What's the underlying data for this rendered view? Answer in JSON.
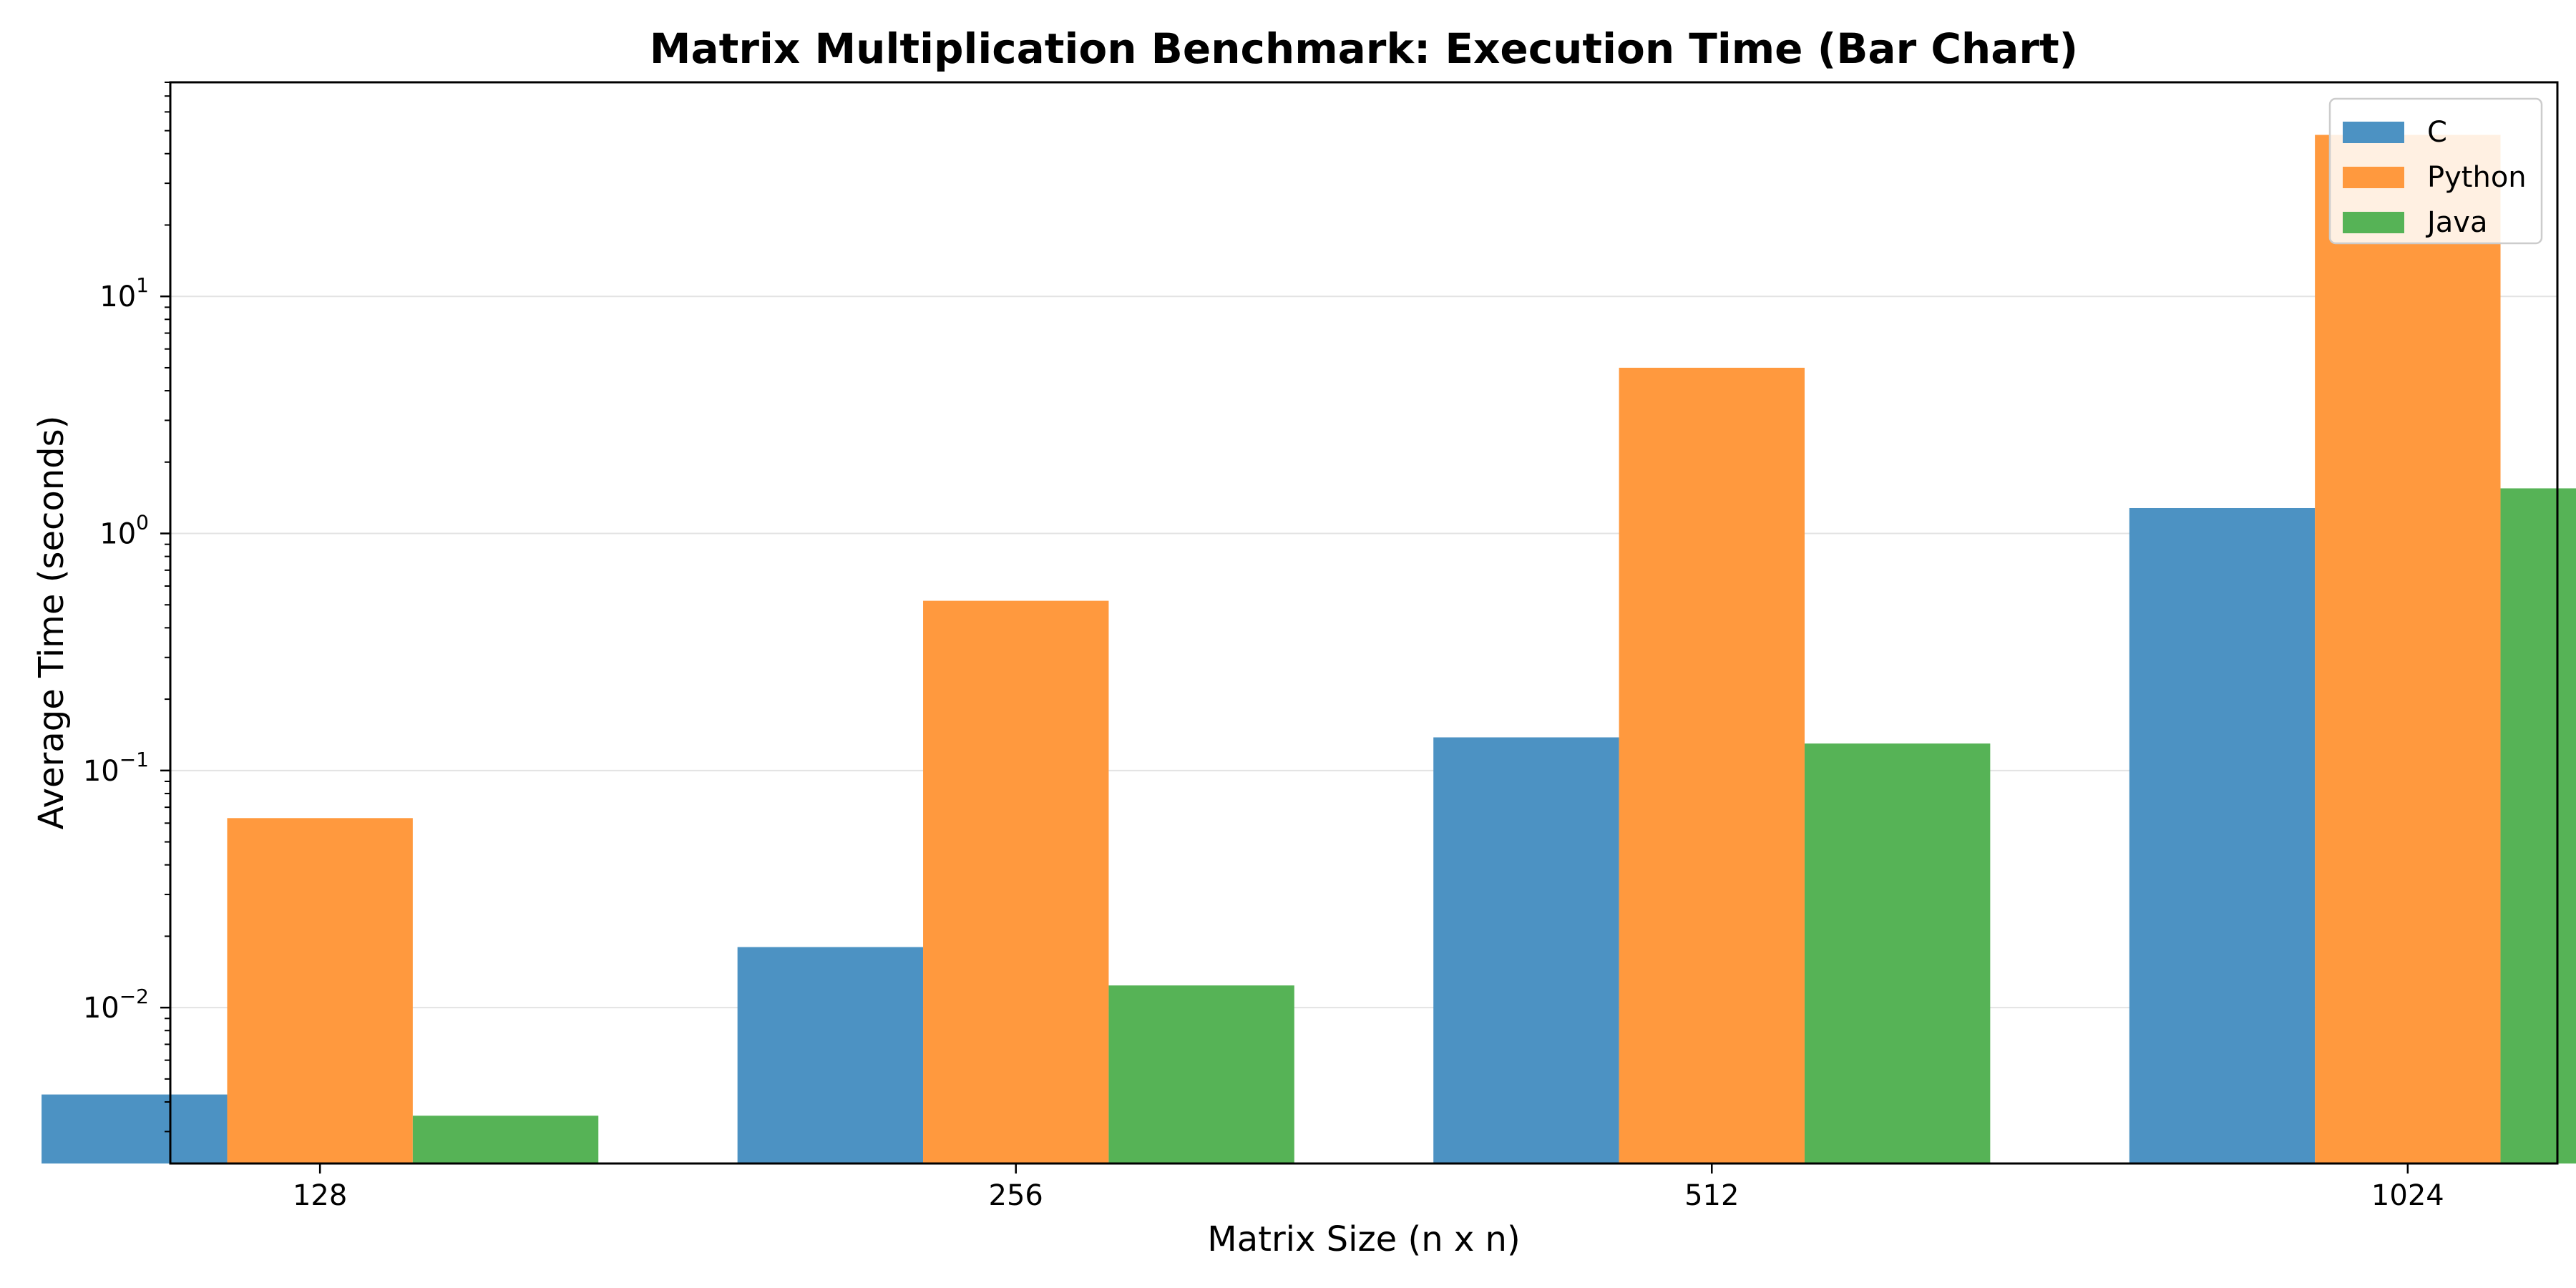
{
  "chart_data": {
    "type": "bar",
    "title": "Matrix Multiplication Benchmark: Execution Time (Bar Chart)",
    "xlabel": "Matrix Size (n x n)",
    "ylabel": "Average Time (seconds)",
    "yscale": "log",
    "ylim": [
      0.0022,
      80
    ],
    "grid": "y-major",
    "legend_placement": "top-right",
    "categories": [
      "128",
      "256",
      "512",
      "1024"
    ],
    "series": [
      {
        "name": "C",
        "color": "#4c92c3",
        "values": [
          0.0043,
          0.018,
          0.138,
          1.28
        ]
      },
      {
        "name": "Python",
        "color": "#ff993e",
        "values": [
          0.063,
          0.52,
          5.0,
          48
        ]
      },
      {
        "name": "Java",
        "color": "#56b356",
        "values": [
          0.0035,
          0.0124,
          0.13,
          1.55
        ]
      }
    ],
    "y_ticks": [
      {
        "value": 0.01,
        "base": "10",
        "exp": "−2"
      },
      {
        "value": 0.1,
        "base": "10",
        "exp": "−1"
      },
      {
        "value": 1,
        "base": "10",
        "exp": "0"
      },
      {
        "value": 10,
        "base": "10",
        "exp": "1"
      }
    ]
  }
}
